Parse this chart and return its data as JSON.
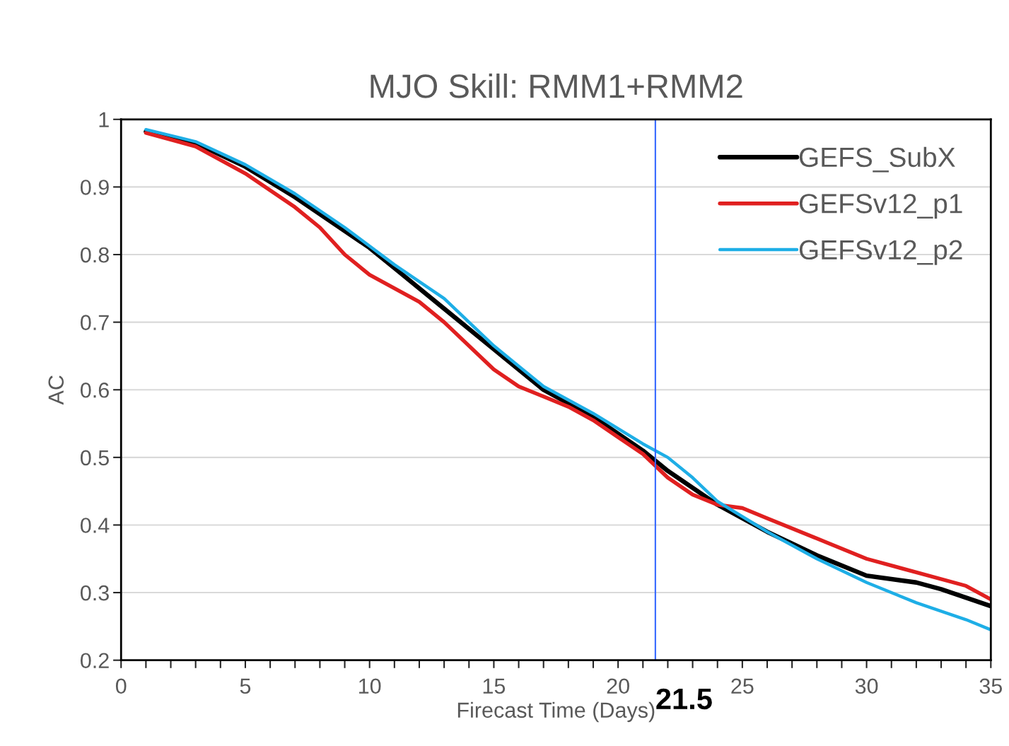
{
  "chart_data": {
    "type": "line",
    "title": "MJO Skill: RMM1+RMM2",
    "xlabel": "Firecast Time (Days)",
    "ylabel": "AC",
    "xlim": [
      0,
      35
    ],
    "ylim": [
      0.2,
      1
    ],
    "xticks": [
      0,
      {
        "value": 1,
        "label": null
      },
      {
        "value": 2,
        "label": null
      },
      {
        "value": 3,
        "label": null
      },
      {
        "value": 4,
        "label": null
      },
      5,
      {
        "value": 6,
        "label": null
      },
      {
        "value": 7,
        "label": null
      },
      {
        "value": 8,
        "label": null
      },
      {
        "value": 9,
        "label": null
      },
      10,
      {
        "value": 11,
        "label": null
      },
      {
        "value": 12,
        "label": null
      },
      {
        "value": 13,
        "label": null
      },
      {
        "value": 14,
        "label": null
      },
      15,
      {
        "value": 16,
        "label": null
      },
      {
        "value": 17,
        "label": null
      },
      {
        "value": 18,
        "label": null
      },
      {
        "value": 19,
        "label": null
      },
      20,
      {
        "value": 21,
        "label": null
      },
      {
        "value": 22,
        "label": null
      },
      {
        "value": 23,
        "label": null
      },
      {
        "value": 24,
        "label": null
      },
      25,
      {
        "value": 26,
        "label": null
      },
      {
        "value": 27,
        "label": null
      },
      {
        "value": 28,
        "label": null
      },
      {
        "value": 29,
        "label": null
      },
      30,
      {
        "value": 31,
        "label": null
      },
      {
        "value": 32,
        "label": null
      },
      {
        "value": 33,
        "label": null
      },
      {
        "value": 34,
        "label": null
      },
      35
    ],
    "yticks": [
      {
        "value": 0.2,
        "label": "0.2"
      },
      {
        "value": 0.3,
        "label": "0.3"
      },
      {
        "value": 0.4,
        "label": "0.4"
      },
      {
        "value": 0.5,
        "label": "0.5"
      },
      {
        "value": 0.6,
        "label": "0.6"
      },
      {
        "value": 0.7,
        "label": "0.7"
      },
      {
        "value": 0.8,
        "label": "0.8"
      },
      {
        "value": 0.9,
        "label": "0.9"
      },
      1
    ],
    "grid": "y",
    "legend": "top right",
    "series": [
      {
        "name": "GEFS_SubX",
        "color": "#000000",
        "x": [
          1,
          3,
          5,
          7,
          9,
          10,
          11,
          13,
          15,
          17,
          19,
          20,
          21,
          22,
          24,
          26,
          28,
          30,
          32,
          33,
          35
        ],
        "values": [
          0.982,
          0.965,
          0.93,
          0.885,
          0.835,
          0.81,
          0.78,
          0.72,
          0.66,
          0.6,
          0.56,
          0.535,
          0.51,
          0.48,
          0.43,
          0.39,
          0.355,
          0.325,
          0.315,
          0.305,
          0.28
        ]
      },
      {
        "name": "GEFSv12_p1",
        "color": "#e02020",
        "x": [
          1,
          3,
          5,
          7,
          8,
          9,
          10,
          12,
          13,
          15,
          16,
          17,
          18,
          19,
          20,
          21,
          22,
          23,
          24,
          25,
          26,
          28,
          30,
          32,
          34,
          35
        ],
        "values": [
          0.98,
          0.96,
          0.92,
          0.87,
          0.84,
          0.8,
          0.77,
          0.73,
          0.7,
          0.63,
          0.605,
          0.59,
          0.575,
          0.555,
          0.53,
          0.505,
          0.47,
          0.445,
          0.43,
          0.425,
          0.41,
          0.38,
          0.35,
          0.33,
          0.31,
          0.29
        ]
      },
      {
        "name": "GEFSv12_p2",
        "color": "#1eaee6",
        "x": [
          1,
          3,
          5,
          7,
          9,
          11,
          13,
          15,
          17,
          19,
          21,
          22,
          23,
          24,
          26,
          28,
          30,
          32,
          34,
          35
        ],
        "values": [
          0.985,
          0.967,
          0.933,
          0.89,
          0.84,
          0.785,
          0.735,
          0.665,
          0.605,
          0.565,
          0.52,
          0.5,
          0.47,
          0.435,
          0.39,
          0.35,
          0.315,
          0.285,
          0.26,
          0.245
        ]
      }
    ],
    "ref_lines": [
      {
        "axis": "x",
        "value": 21.5,
        "label": "21.5",
        "color": "#3366ff"
      }
    ]
  }
}
